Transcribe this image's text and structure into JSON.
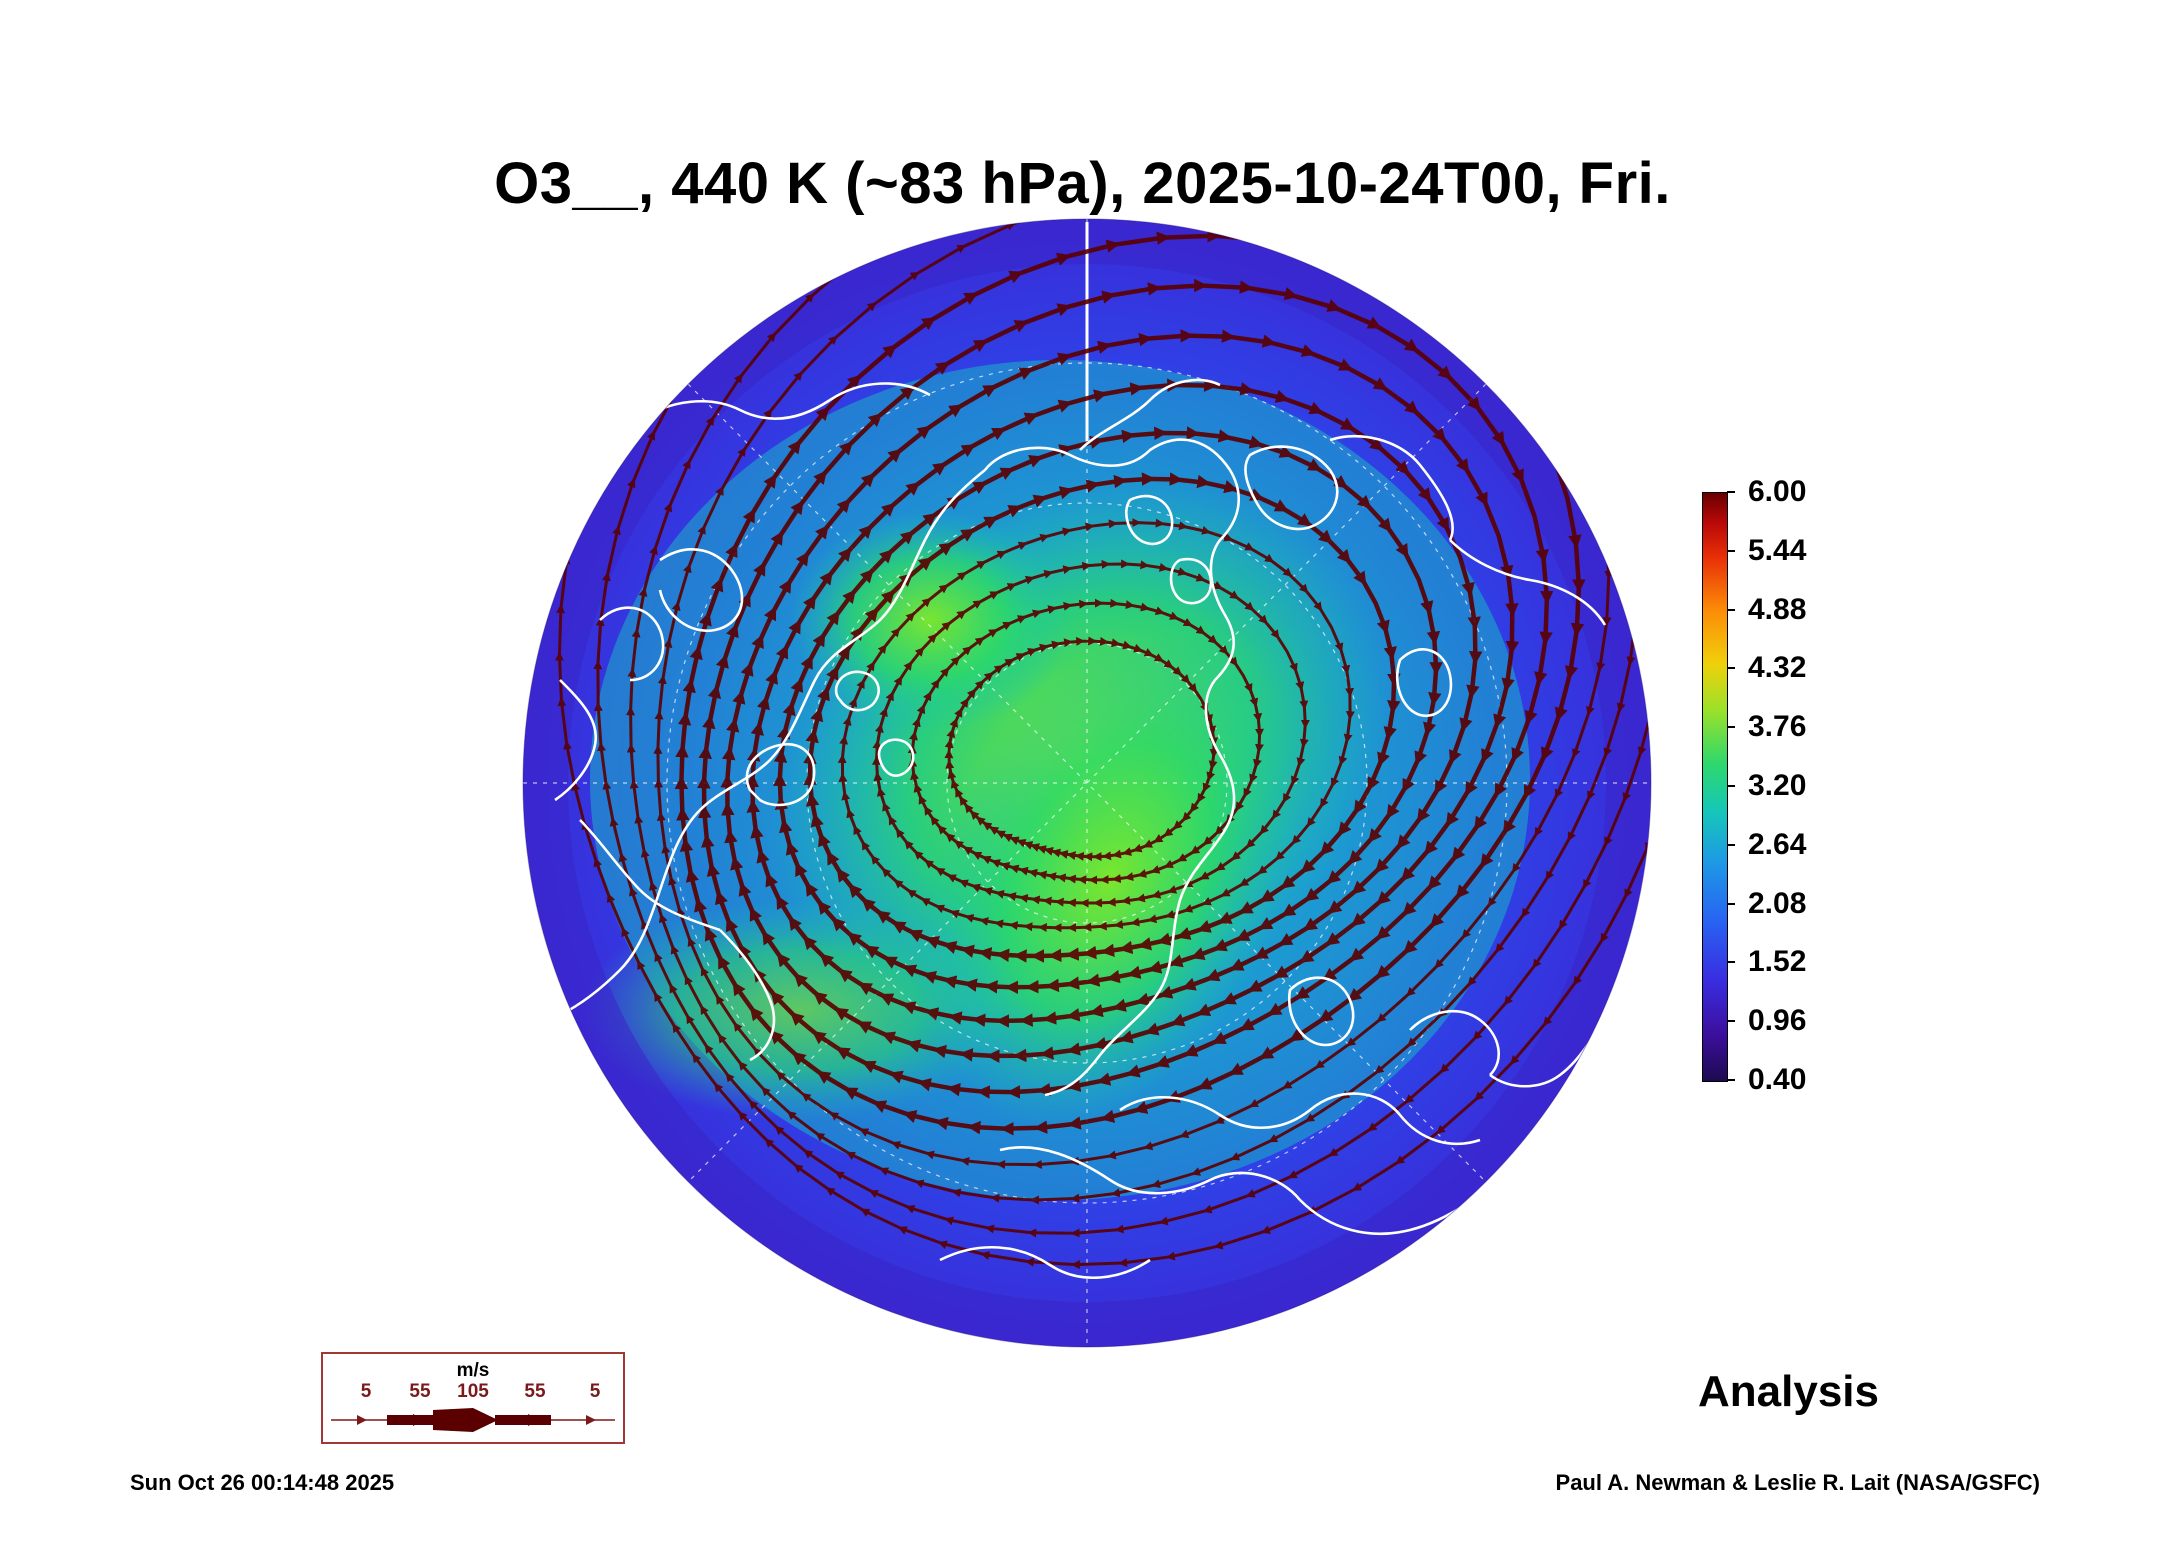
{
  "title": "O3__, 440 K (~83 hPa), 2025-10-24T00, Fri.",
  "colorbar": {
    "ticks": [
      "6.00",
      "5.44",
      "4.88",
      "4.32",
      "3.76",
      "3.20",
      "2.64",
      "2.08",
      "1.52",
      "0.96",
      "0.40"
    ]
  },
  "legend": {
    "unit": "m/s",
    "values": [
      "5",
      "55",
      "105",
      "55",
      "5"
    ]
  },
  "label": "Analysis",
  "timestamp": "Sun Oct 26 00:14:48 2025",
  "credit": "Paul A. Newman & Leslie R. Lait (NASA/GSFC)",
  "colors": {
    "streamline": "#5a0000",
    "coastline": "#ffffff",
    "ocean_low": "#3a2be0",
    "mid": "#1ea0e0",
    "high": "#3ee25a"
  }
}
